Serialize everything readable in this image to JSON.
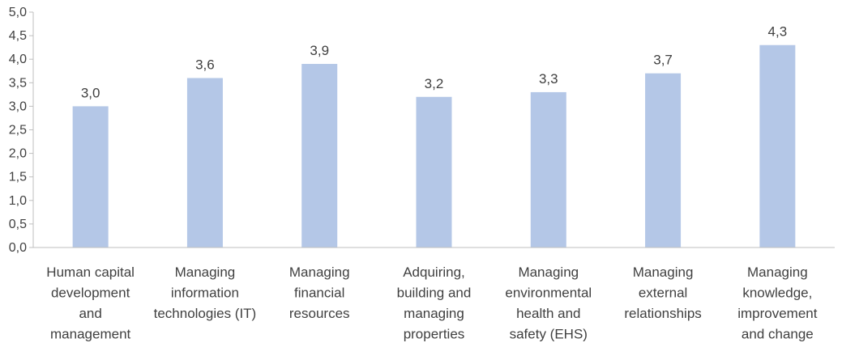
{
  "chart_data": {
    "type": "bar",
    "categories": [
      [
        "Human capital",
        "development",
        "and",
        "management"
      ],
      [
        "Managing",
        "information",
        "technologies (IT)"
      ],
      [
        "Managing",
        "financial",
        "resources"
      ],
      [
        "Adquiring,",
        "building and",
        "managing",
        "properties"
      ],
      [
        "Managing",
        "environmental",
        "health and",
        "safety (EHS)"
      ],
      [
        "Managing",
        "external",
        "relationships"
      ],
      [
        "Managing",
        "knowledge,",
        "improvement",
        "and change"
      ]
    ],
    "values": [
      3.0,
      3.6,
      3.9,
      3.2,
      3.3,
      3.7,
      4.3
    ],
    "data_labels": [
      "3,0",
      "3,6",
      "3,9",
      "3,2",
      "3,3",
      "3,7",
      "4,3"
    ],
    "title": "",
    "xlabel": "",
    "ylabel": "",
    "ylim": [
      0,
      5
    ],
    "yticks": [
      0,
      0.5,
      1,
      1.5,
      2,
      2.5,
      3,
      3.5,
      4,
      4.5,
      5
    ],
    "ytick_labels": [
      "0,0",
      "0,5",
      "1,0",
      "1,5",
      "2,0",
      "2,5",
      "3,0",
      "3,5",
      "4,0",
      "4,5",
      "5,0"
    ],
    "grid": false,
    "legend": "none",
    "colors": {
      "bar": "#b4c7e7",
      "axis": "#bfbfbf",
      "text": "#404040"
    }
  }
}
